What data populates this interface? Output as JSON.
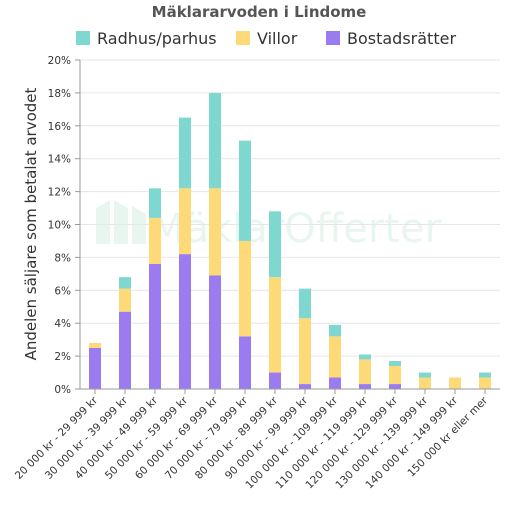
{
  "chart_data": {
    "type": "bar",
    "stacked": true,
    "title": "Mäklararvoden i Lindome",
    "ylabel": "Andelen säljare som betalat arvodet",
    "xlabel": "",
    "ylim": [
      0,
      20
    ],
    "yticks": [
      "0%",
      "2%",
      "4%",
      "6%",
      "8%",
      "10%",
      "12%",
      "14%",
      "16%",
      "18%",
      "20%"
    ],
    "grid": "horizontal",
    "legend_position": "top",
    "categories": [
      "20 000 kr - 29 999 kr",
      "30 000 kr - 39 999 kr",
      "40 000 kr - 49 999 kr",
      "50 000 kr - 59 999 kr",
      "60 000 kr - 69 999 kr",
      "70 000 kr - 79 999 kr",
      "80 000 kr - 89 999 kr",
      "90 000 kr - 99 999 kr",
      "100 000 kr - 109 999 kr",
      "110 000 kr - 119 999 kr",
      "120 000 kr - 129 999 kr",
      "130 000 kr - 139 999 kr",
      "140 000 kr - 149 999 kr",
      "150 000 kr eller mer"
    ],
    "series": [
      {
        "name": "Bostadsrätter",
        "color": "#9b7cf0",
        "values": [
          2.5,
          4.7,
          7.6,
          8.2,
          6.9,
          3.2,
          1.0,
          0.3,
          0.7,
          0.3,
          0.3,
          0.0,
          0.0,
          0.0
        ]
      },
      {
        "name": "Villor",
        "color": "#fdd978",
        "values": [
          0.3,
          1.4,
          2.8,
          4.0,
          5.3,
          5.8,
          5.8,
          4.0,
          2.5,
          1.5,
          1.1,
          0.7,
          0.7,
          0.7
        ]
      },
      {
        "name": "Radhus/parhus",
        "color": "#7ed8d0",
        "values": [
          0.0,
          0.7,
          1.8,
          4.3,
          5.8,
          6.1,
          4.0,
          1.8,
          0.7,
          0.3,
          0.3,
          0.3,
          0.0,
          0.3
        ]
      }
    ],
    "legend_order": [
      "Radhus/parhus",
      "Villor",
      "Bostadsrätter"
    ]
  },
  "watermark": "MäklarOfferter"
}
